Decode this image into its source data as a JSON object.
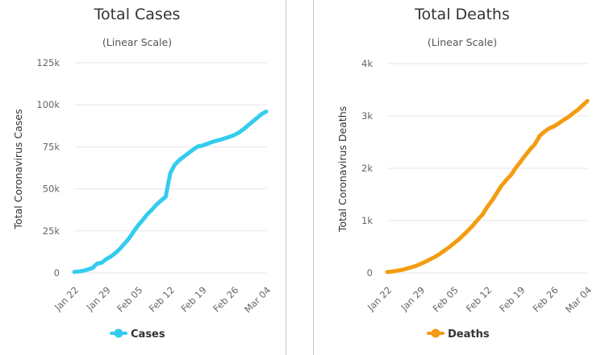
{
  "chart_data": [
    {
      "type": "line",
      "title": "Total Cases",
      "subtitle": "(Linear Scale)",
      "ylabel": "Total Coronavirus Cases",
      "xlabel": "",
      "ylim": [
        0,
        125000
      ],
      "yticks": [
        0,
        25000,
        50000,
        75000,
        100000,
        125000
      ],
      "ytick_labels": [
        "0",
        "25k",
        "50k",
        "75k",
        "100k",
        "125k"
      ],
      "xtick_labels": [
        "Jan 22",
        "Jan 29",
        "Feb 05",
        "Feb 12",
        "Feb 19",
        "Feb 26",
        "Mar 04"
      ],
      "xtick_days": [
        0,
        7,
        14,
        21,
        28,
        35,
        42
      ],
      "color": "#33ccee",
      "legend": "top-bottom-center",
      "series": [
        {
          "name": "Cases",
          "x": [
            0,
            1,
            2,
            3,
            4,
            5,
            6,
            7,
            8,
            9,
            10,
            11,
            12,
            13,
            14,
            15,
            16,
            17,
            18,
            19,
            20,
            21,
            22,
            23,
            24,
            25,
            26,
            27,
            28,
            29,
            30,
            31,
            32,
            33,
            34,
            35,
            36,
            37,
            38,
            39,
            40,
            41,
            42
          ],
          "values": [
            580,
            850,
            1300,
            2000,
            2900,
            5500,
            6100,
            8200,
            9700,
            11800,
            14400,
            17400,
            20600,
            24600,
            28300,
            31500,
            34900,
            37600,
            40600,
            43100,
            45200,
            59300,
            64400,
            67100,
            69200,
            71300,
            73300,
            75200,
            75700,
            76700,
            77700,
            78600,
            79200,
            80100,
            81000,
            82000,
            83500,
            85400,
            87700,
            90000,
            92200,
            94500,
            96000
          ]
        }
      ]
    },
    {
      "type": "line",
      "title": "Total Deaths",
      "subtitle": "(Linear Scale)",
      "ylabel": "Total Coronavirus Deaths",
      "xlabel": "",
      "ylim": [
        0,
        4000
      ],
      "yticks": [
        0,
        1000,
        2000,
        3000,
        4000
      ],
      "ytick_labels": [
        "0",
        "1k",
        "2k",
        "3k",
        "4k"
      ],
      "xtick_labels": [
        "Jan 22",
        "Jan 29",
        "Feb 05",
        "Feb 12",
        "Feb 19",
        "Feb 26",
        "Mar 04"
      ],
      "xtick_days": [
        0,
        7,
        14,
        21,
        28,
        35,
        42
      ],
      "color": "#f39c12",
      "legend": "top-bottom-center",
      "series": [
        {
          "name": "Deaths",
          "x": [
            0,
            1,
            2,
            3,
            4,
            5,
            6,
            7,
            8,
            9,
            10,
            11,
            12,
            13,
            14,
            15,
            16,
            17,
            18,
            19,
            20,
            21,
            22,
            23,
            24,
            25,
            26,
            27,
            28,
            29,
            30,
            31,
            32,
            33,
            34,
            35,
            36,
            37,
            38,
            39,
            40,
            41,
            42
          ],
          "values": [
            17,
            25,
            41,
            56,
            80,
            106,
            132,
            170,
            213,
            259,
            304,
            362,
            426,
            492,
            565,
            638,
            724,
            813,
            910,
            1018,
            1115,
            1261,
            1383,
            1526,
            1669,
            1775,
            1873,
            2009,
            2126,
            2247,
            2360,
            2460,
            2618,
            2699,
            2763,
            2800,
            2858,
            2923,
            2977,
            3050,
            3117,
            3200,
            3286
          ]
        }
      ]
    }
  ]
}
